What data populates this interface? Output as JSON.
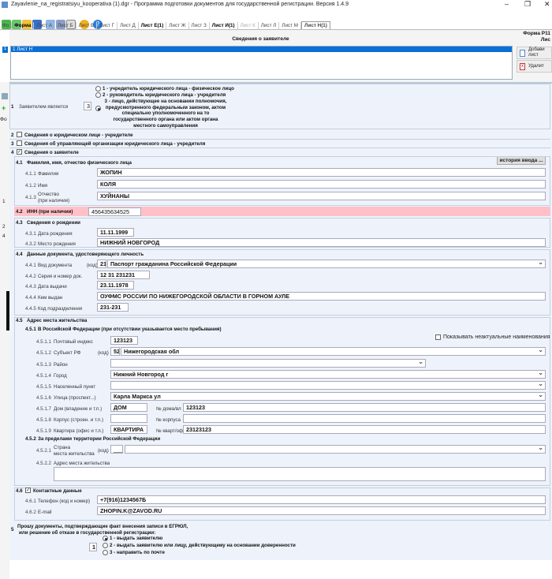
{
  "window": {
    "title": "Zayavlenie_na_registratsiyu_kooperativa (1).dgr - Программа подготовки документов для государственной регистрации. Версия 1.4.9"
  },
  "tabs": [
    {
      "label": "Фо"
    },
    {
      "label": "Форма",
      "bold": true
    },
    {
      "label": "Лист А"
    },
    {
      "label": "Лист Б"
    },
    {
      "label": "Лист В"
    },
    {
      "label": "Лист Г"
    },
    {
      "label": "Лист Д"
    },
    {
      "label": "Лист Е(1)",
      "bold": true
    },
    {
      "label": "Лист Ж"
    },
    {
      "label": "Лист З"
    },
    {
      "label": "Лист И(1)",
      "bold": true
    },
    {
      "label": "Лист К",
      "disabled": true
    },
    {
      "label": "Лист Л"
    },
    {
      "label": "Лист М"
    },
    {
      "label": "Лист Н(1)",
      "active": true
    }
  ],
  "header": {
    "title": "Сведения о заявителе",
    "form_code": "Форма Р11",
    "sheet": "Лис",
    "list_index": "1",
    "list_item": "1 Лист Н",
    "add_button": "Добави лист",
    "delete_button": "Удалит"
  },
  "left_strip": [
    "1",
    "Фо",
    "1",
    "2",
    "4"
  ],
  "s1": {
    "num": "1",
    "label": "Заявителем является",
    "value": "3",
    "options": [
      "1 - учредитель юридического лица - физическое лицо",
      "2 - руководитель юридического лица - учредителя",
      "3 - лицо, действующее на основании полномочия, предусмотренного федеральным законом, актом специально уполномоченного на то государственного органа или актом органа местного самоуправления"
    ],
    "selected": 3
  },
  "s2": {
    "num": "2",
    "label": "Сведения о юридическом лице - учредителе",
    "checked": false
  },
  "s3": {
    "num": "3",
    "label": "Сведения об управляющей организации юридического лица - учредителя",
    "checked": false
  },
  "s4": {
    "num": "4",
    "label": "Сведения о заявителе",
    "checked": true,
    "history_button": "история ввода ...",
    "s41": {
      "num": "4.1",
      "label": "Фамилия, имя, отчество физического лица",
      "f1": {
        "num": "4.1.1",
        "label": "Фамилия",
        "value": "ЖОПИН"
      },
      "f2": {
        "num": "4.1.2",
        "label": "Имя",
        "value": "КОЛЯ"
      },
      "f3": {
        "num": "4.1.3",
        "label": "Отчество",
        "sub": "(при наличии)",
        "value": "ХУЙНАНЫ"
      }
    },
    "s42": {
      "num": "4.2",
      "label": "ИНН (при наличии)",
      "value": "456435634525"
    },
    "s43": {
      "num": "4.3",
      "label": "Сведения о рождении",
      "f1": {
        "num": "4.3.1",
        "label": "Дата рождения",
        "value": "11.11.1999"
      },
      "f2": {
        "num": "4.3.2",
        "label": "Место рождения",
        "value": "НИЖНИЙ НОВГОРОД"
      }
    },
    "s44": {
      "num": "4.4",
      "label": "Данные документа, удостоверяющего личность",
      "code_label": "(код)",
      "f1": {
        "num": "4.4.1",
        "label": "Вид документа",
        "code": "21",
        "value": "Паспорт гражданина Российской Федерации"
      },
      "f2": {
        "num": "4.4.2",
        "label": "Серия и номер док.",
        "value": "12 31 231231"
      },
      "f3": {
        "num": "4.4.3",
        "label": "Дата выдачи",
        "value": "23.11.1978"
      },
      "f4": {
        "num": "4.4.4",
        "label": "Кем выдан",
        "value": "ОУФМС РОССИИ ПО НИЖЕГОРОДСКОЙ ОБЛАСТИ В ГОРНОМ АУЛЕ"
      },
      "f5": {
        "num": "4.4.5",
        "label": "Код подразделения",
        "value": "231-231"
      }
    },
    "s45": {
      "num": "4.5",
      "label": "Адрес места жительства",
      "s451": {
        "num": "4.5.1",
        "label": "В Российской Федерации (при отсутствии указывается место пребывания)",
        "show_inactive": "Показывать неактуальные наименования",
        "f1": {
          "num": "4.5.1.1",
          "label": "Почтовый индекс",
          "value": "123123"
        },
        "f2": {
          "num": "4.5.1.2",
          "label": "Субъект РФ",
          "code": "52",
          "value": "Нижегородская обл"
        },
        "f3": {
          "num": "4.5.1.3",
          "label": "Район",
          "value": ""
        },
        "f4": {
          "num": "4.5.1.4",
          "label": "Город",
          "value": "Нижний Новгород г"
        },
        "f5": {
          "num": "4.5.1.5",
          "label": "Населенный пункт",
          "value": ""
        },
        "f6": {
          "num": "4.5.1.6",
          "label": "Улица (проспект...)",
          "value": "Карла Маркса ул"
        },
        "f7": {
          "num": "4.5.1.7",
          "label": "Дом (владение и т.п.)",
          "value": "ДОМ",
          "label2": "№ дома/вл",
          "value2": "123123"
        },
        "f8": {
          "num": "4.5.1.8",
          "label": "Корпус (строен. и т.п.)",
          "value": "",
          "label2": "№ корпуса",
          "value2": ""
        },
        "f9": {
          "num": "4.5.1.9",
          "label": "Квартира (офис и т.п.)",
          "value": "КВАРТИРА",
          "label2": "№ кварт/оф",
          "value2": "23123123"
        }
      },
      "s452": {
        "num": "4.5.2",
        "label": "За пределами территории Российской Федерации",
        "f1": {
          "num": "4.5.2.1",
          "label": "Страна",
          "sub": "места жительства",
          "code": "___",
          "value": ""
        },
        "f2": {
          "num": "4.5.2.2",
          "label": "Адрес места жительства",
          "value": ""
        }
      }
    },
    "s46": {
      "num": "4.6",
      "label": "Контактные данные",
      "checked": true,
      "f1": {
        "num": "4.6.1",
        "label": "Телефон (код и номер)",
        "value": "+7(916)1234567Б"
      },
      "f2": {
        "num": "4.6.2",
        "label": "E-mail",
        "value": "ZHOPIN.K@ZAVOD.RU"
      }
    }
  },
  "s5": {
    "num": "5",
    "label1": "Прошу документы, подтверждающие факт внесения записи в ЕГРЮЛ,",
    "label2": "или решение об отказе в государственной регистрации:",
    "value": "1",
    "options": [
      "1 - выдать заявителю",
      "2 - выдать заявителю или лицу, действующему на основании доверенности",
      "3 - направить по почте"
    ],
    "selected": 1
  },
  "colors": {
    "selection": "#0a6fd6",
    "form_bg": "#eef3fb",
    "inn_highlight": "#ffc0c8"
  }
}
